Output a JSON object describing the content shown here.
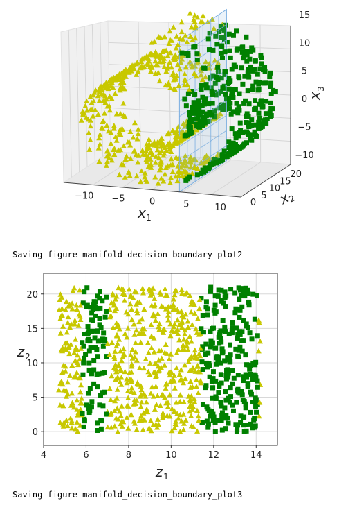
{
  "outputs": {
    "line1": "Saving figure manifold_decision_boundary_plot2",
    "line2": "Saving figure manifold_decision_boundary_plot3"
  },
  "colors": {
    "class_a": "#c8c800",
    "class_b": "#008000",
    "plane": "#7aaee0"
  },
  "chart_data": [
    {
      "type": "scatter",
      "projection": "3d",
      "description_of_marks": "Swiss roll: yellow triangles for x1 <= 5, green squares for x1 > 5; decision plane at x1 = 5",
      "xlabel": "x_1",
      "ylabel": "x_2",
      "zlabel": "x_3",
      "x_ticks": [
        "−10",
        "−5",
        "0",
        "5",
        "10"
      ],
      "y_ticks": [
        "0",
        "5",
        "10",
        "15",
        "20"
      ],
      "z_ticks": [
        "−10",
        "−5",
        "0",
        "5",
        "10",
        "15"
      ],
      "xlim": [
        -12,
        14
      ],
      "ylim": [
        0,
        22
      ],
      "zlim": [
        -12,
        15
      ],
      "decision_plane_x1": 5,
      "series": [
        {
          "marker": "triangle",
          "color": "#c8c800",
          "rule": "x1 <= 5"
        },
        {
          "marker": "square",
          "color": "#008000",
          "rule": "x1 > 5"
        }
      ],
      "grid": true
    },
    {
      "type": "scatter",
      "xlabel": "z_1",
      "ylabel": "z_2",
      "x_ticks": [
        "4",
        "6",
        "8",
        "10",
        "12",
        "14"
      ],
      "y_ticks": [
        "0",
        "5",
        "10",
        "15",
        "20"
      ],
      "xlim": [
        4,
        15
      ],
      "ylim": [
        -2,
        23
      ],
      "green_bands_z1": [
        [
          5.8,
          7.0
        ],
        [
          11.4,
          14.1
        ]
      ],
      "z1_range": [
        4.7,
        14.2
      ],
      "z2_range": [
        0,
        21
      ],
      "series": [
        {
          "marker": "triangle",
          "color": "#c8c800",
          "rule": "z1 outside green bands"
        },
        {
          "marker": "square",
          "color": "#008000",
          "rule": "z1 inside green bands"
        }
      ],
      "grid": true
    }
  ]
}
